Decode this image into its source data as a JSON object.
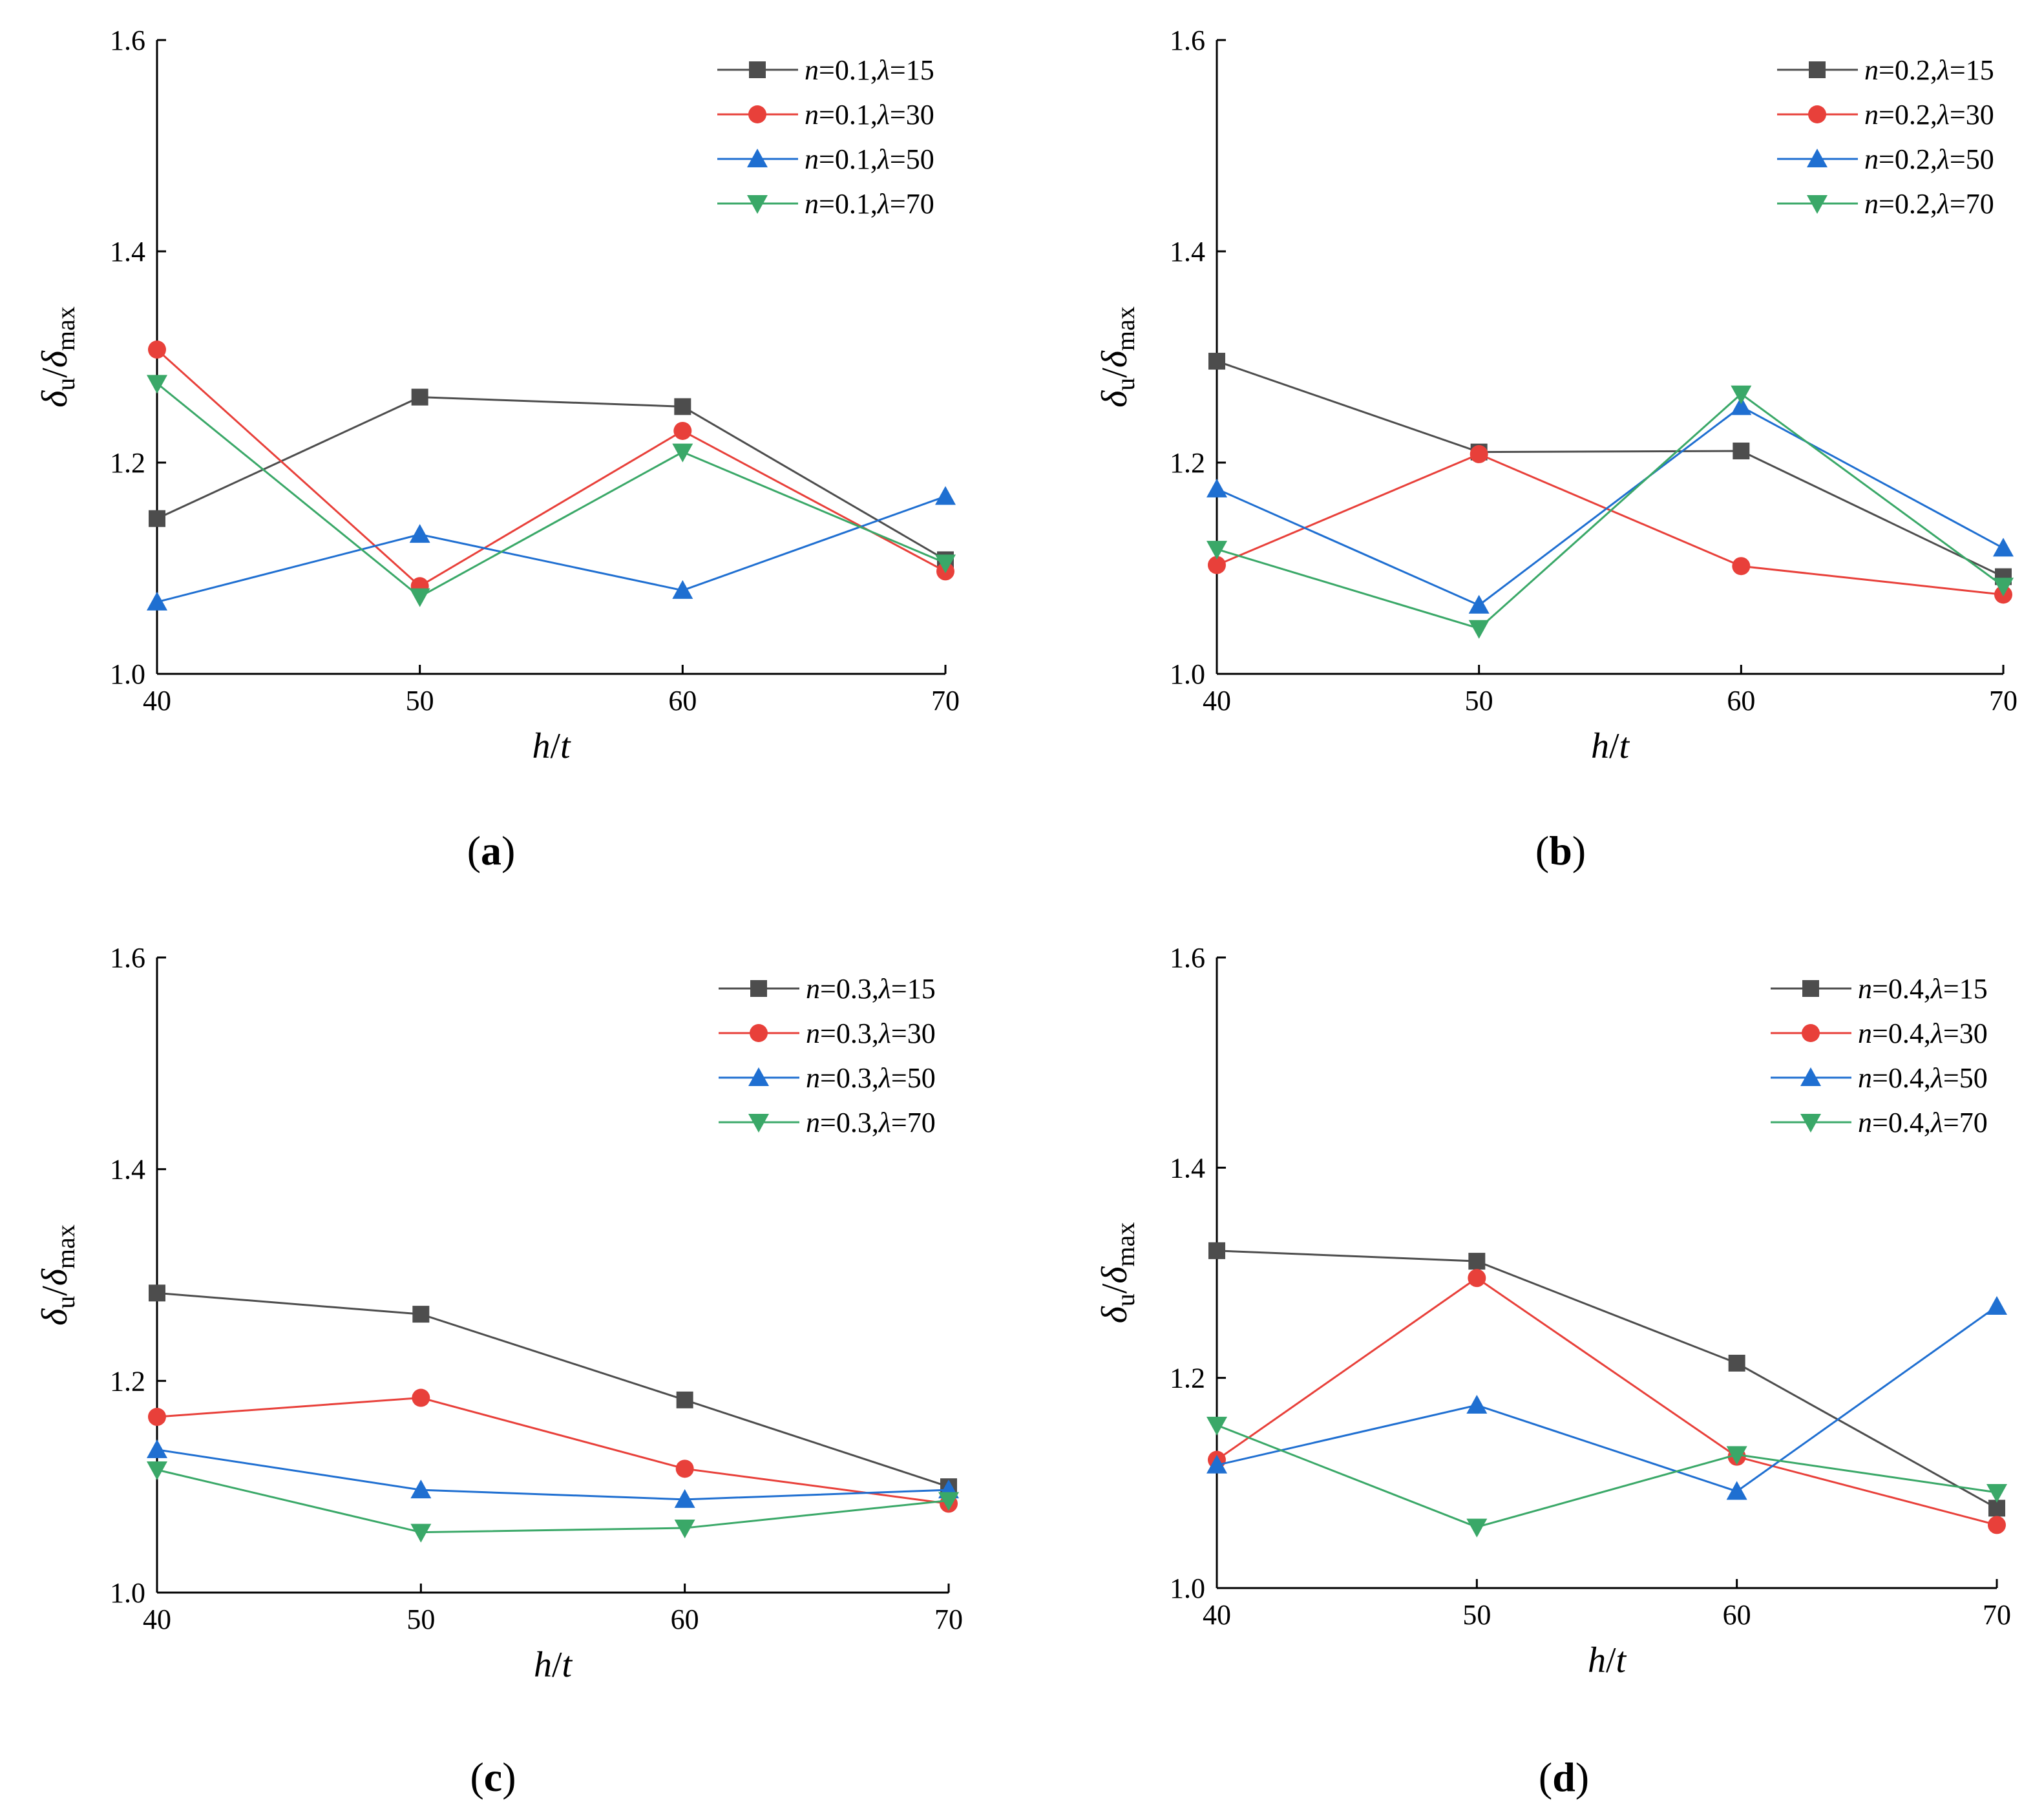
{
  "figure": {
    "panels": [
      "a",
      "b",
      "c",
      "d"
    ]
  },
  "series_colors": [
    "#4d4d4d",
    "#e8403a",
    "#1f6fd1",
    "#3aa868"
  ],
  "series_markers": [
    "square",
    "circle",
    "triangle-up",
    "triangle-down"
  ],
  "chart_data": [
    {
      "type": "line",
      "panel_label": "a",
      "xlabel": "h/t",
      "ylabel": "δu/δmax",
      "x": [
        40,
        50,
        60,
        70
      ],
      "xlim": [
        40,
        70
      ],
      "ylim": [
        1.0,
        1.6
      ],
      "yticks": [
        "1.0",
        "1.2",
        "1.4",
        "1.6"
      ],
      "xticks": [
        "40",
        "50",
        "60",
        "70"
      ],
      "legend_position": "top-right",
      "series": [
        {
          "name": "n=0.1,λ=15",
          "n": "0.1",
          "lambda": "15",
          "values": [
            1.147,
            1.262,
            1.253,
            1.108
          ]
        },
        {
          "name": "n=0.1,λ=30",
          "n": "0.1",
          "lambda": "30",
          "values": [
            1.307,
            1.083,
            1.23,
            1.097
          ]
        },
        {
          "name": "n=0.1,λ=50",
          "n": "0.1",
          "lambda": "50",
          "values": [
            1.068,
            1.132,
            1.079,
            1.168
          ]
        },
        {
          "name": "n=0.1,λ=70",
          "n": "0.1",
          "lambda": "70",
          "values": [
            1.275,
            1.073,
            1.21,
            1.105
          ]
        }
      ]
    },
    {
      "type": "line",
      "panel_label": "b",
      "xlabel": "h/t",
      "ylabel": "δu/δmax",
      "x": [
        40,
        50,
        60,
        70
      ],
      "xlim": [
        40,
        70
      ],
      "ylim": [
        1.0,
        1.6
      ],
      "yticks": [
        "1.0",
        "1.2",
        "1.4",
        "1.6"
      ],
      "xticks": [
        "40",
        "50",
        "60",
        "70"
      ],
      "legend_position": "top-right",
      "series": [
        {
          "name": "n=0.2,λ=15",
          "n": "0.2",
          "lambda": "15",
          "values": [
            1.296,
            1.21,
            1.211,
            1.092
          ]
        },
        {
          "name": "n=0.2,λ=30",
          "n": "0.2",
          "lambda": "30",
          "values": [
            1.103,
            1.208,
            1.102,
            1.075
          ]
        },
        {
          "name": "n=0.2,λ=50",
          "n": "0.2",
          "lambda": "50",
          "values": [
            1.175,
            1.065,
            1.253,
            1.119
          ]
        },
        {
          "name": "n=0.2,λ=70",
          "n": "0.2",
          "lambda": "70",
          "values": [
            1.118,
            1.043,
            1.265,
            1.083
          ]
        }
      ]
    },
    {
      "type": "line",
      "panel_label": "c",
      "xlabel": "h/t",
      "ylabel": "δu/δmax",
      "x": [
        40,
        50,
        60,
        70
      ],
      "xlim": [
        40,
        70
      ],
      "ylim": [
        1.0,
        1.6
      ],
      "yticks": [
        "1.0",
        "1.2",
        "1.4",
        "1.6"
      ],
      "xticks": [
        "40",
        "50",
        "60",
        "70"
      ],
      "legend_position": "top-right",
      "series": [
        {
          "name": "n=0.3,λ=15",
          "n": "0.3",
          "lambda": "15",
          "values": [
            1.283,
            1.263,
            1.182,
            1.1
          ]
        },
        {
          "name": "n=0.3,λ=30",
          "n": "0.3",
          "lambda": "30",
          "values": [
            1.166,
            1.184,
            1.117,
            1.084
          ]
        },
        {
          "name": "n=0.3,λ=50",
          "n": "0.3",
          "lambda": "50",
          "values": [
            1.135,
            1.097,
            1.088,
            1.097
          ]
        },
        {
          "name": "n=0.3,λ=70",
          "n": "0.3",
          "lambda": "70",
          "values": [
            1.116,
            1.057,
            1.061,
            1.087
          ]
        }
      ]
    },
    {
      "type": "line",
      "panel_label": "d",
      "xlabel": "h/t",
      "ylabel": "δu/δmax",
      "x": [
        40,
        50,
        60,
        70
      ],
      "xlim": [
        40,
        70
      ],
      "ylim": [
        1.0,
        1.6
      ],
      "yticks": [
        "1.0",
        "1.2",
        "1.4",
        "1.6"
      ],
      "xticks": [
        "40",
        "50",
        "60",
        "70"
      ],
      "legend_position": "top-right",
      "series": [
        {
          "name": "n=0.4,λ=15",
          "n": "0.4",
          "lambda": "15",
          "values": [
            1.321,
            1.311,
            1.214,
            1.076
          ]
        },
        {
          "name": "n=0.4,λ=30",
          "n": "0.4",
          "lambda": "30",
          "values": [
            1.122,
            1.295,
            1.125,
            1.06
          ]
        },
        {
          "name": "n=0.4,λ=50",
          "n": "0.4",
          "lambda": "50",
          "values": [
            1.117,
            1.174,
            1.092,
            1.268
          ]
        },
        {
          "name": "n=0.4,λ=70",
          "n": "0.4",
          "lambda": "70",
          "values": [
            1.155,
            1.058,
            1.127,
            1.091
          ]
        }
      ]
    }
  ]
}
